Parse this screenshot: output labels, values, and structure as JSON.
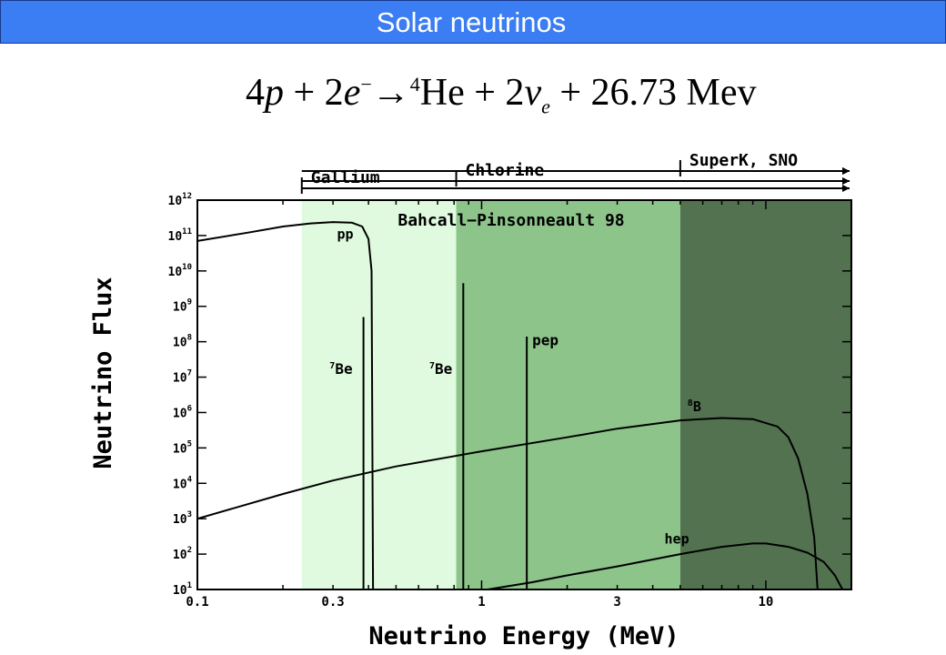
{
  "header": {
    "title": "Solar neutrinos"
  },
  "equation": {
    "lhs_coef": "4",
    "lhs_p": "p",
    "plus1": " + 2",
    "electron": "e",
    "electron_sup": "−",
    "arrow": "→",
    "he_sup": "4",
    "he": "He",
    "plus2": " + 2",
    "nu": "ν",
    "nu_sub": "e",
    "rhs_energy": " + 26.73 Mev"
  },
  "colors": {
    "gallium_band": "#dffadf",
    "chlorine_band": "#8dc48a",
    "superk_band": "#527250",
    "line": "#000000",
    "title_bar": "#3b7df2"
  },
  "chart_data": {
    "type": "line",
    "title": "Bahcall−Pinsonneault 98",
    "xlabel": "Neutrino Energy (MeV)",
    "ylabel": "Neutrino Flux",
    "xscale": "log",
    "yscale": "log",
    "xlim": [
      0.1,
      20
    ],
    "ylim": [
      10,
      1000000000000
    ],
    "x_ticks": [
      {
        "value": 0.1,
        "label": "0.1"
      },
      {
        "value": 0.3,
        "label": "0.3"
      },
      {
        "value": 1,
        "label": "1"
      },
      {
        "value": 3,
        "label": "3"
      },
      {
        "value": 10,
        "label": "10"
      }
    ],
    "y_ticks": [
      {
        "value": 10,
        "base": "10",
        "exp": "1"
      },
      {
        "value": 100,
        "base": "10",
        "exp": "2"
      },
      {
        "value": 1000,
        "base": "10",
        "exp": "3"
      },
      {
        "value": 10000,
        "base": "10",
        "exp": "4"
      },
      {
        "value": 100000,
        "base": "10",
        "exp": "5"
      },
      {
        "value": 1000000,
        "base": "10",
        "exp": "6"
      },
      {
        "value": 10000000,
        "base": "10",
        "exp": "7"
      },
      {
        "value": 100000000,
        "base": "10",
        "exp": "8"
      },
      {
        "value": 1000000000,
        "base": "10",
        "exp": "9"
      },
      {
        "value": 10000000000,
        "base": "10",
        "exp": "10"
      },
      {
        "value": 100000000000,
        "base": "10",
        "exp": "11"
      },
      {
        "value": 1000000000000,
        "base": "10",
        "exp": "12"
      }
    ],
    "detector_ranges": [
      {
        "name": "Gallium",
        "threshold_mev": 0.233,
        "level": 1,
        "color": "#dffadf"
      },
      {
        "name": "Chlorine",
        "threshold_mev": 0.814,
        "level": 2,
        "color": "#8dc48a"
      },
      {
        "name": "SuperK, SNO",
        "threshold_mev": 5,
        "level": 3,
        "color": "#527250"
      }
    ],
    "series": [
      {
        "name": "pp",
        "points": [
          [
            0.1,
            70000000000.0
          ],
          [
            0.15,
            120000000000.0
          ],
          [
            0.2,
            180000000000.0
          ],
          [
            0.25,
            220000000000.0
          ],
          [
            0.3,
            240000000000.0
          ],
          [
            0.35,
            230000000000.0
          ],
          [
            0.38,
            180000000000.0
          ],
          [
            0.4,
            80000000000.0
          ],
          [
            0.41,
            10000000000.0
          ],
          [
            0.415,
            10
          ]
        ]
      },
      {
        "name": "8B",
        "points": [
          [
            0.1,
            1000
          ],
          [
            0.2,
            5000
          ],
          [
            0.3,
            12000
          ],
          [
            0.5,
            30000
          ],
          [
            1,
            80000
          ],
          [
            2,
            200000
          ],
          [
            3,
            350000
          ],
          [
            5,
            600000
          ],
          [
            7,
            700000
          ],
          [
            9,
            650000
          ],
          [
            11,
            400000
          ],
          [
            12,
            200000
          ],
          [
            13,
            50000
          ],
          [
            14,
            5000
          ],
          [
            14.8,
            300
          ],
          [
            15.2,
            10
          ]
        ]
      },
      {
        "name": "hep",
        "points": [
          [
            1.05,
            10
          ],
          [
            1.5,
            16
          ],
          [
            2,
            25
          ],
          [
            3,
            45
          ],
          [
            5,
            100
          ],
          [
            7,
            160
          ],
          [
            9,
            200
          ],
          [
            10,
            200
          ],
          [
            12,
            160
          ],
          [
            14,
            110
          ],
          [
            16,
            60
          ],
          [
            17.5,
            25
          ],
          [
            18.6,
            10
          ]
        ]
      }
    ],
    "lines": [
      {
        "name": "7Be",
        "label_sup": "7",
        "label_text": "Be",
        "energy_mev": 0.384,
        "flux": 500000000.0
      },
      {
        "name": "7Be",
        "label_sup": "7",
        "label_text": "Be",
        "energy_mev": 0.862,
        "flux": 4500000000.0
      },
      {
        "name": "pep",
        "label_sup": "",
        "label_text": "pep",
        "energy_mev": 1.442,
        "flux": 140000000.0
      }
    ],
    "curve_labels": [
      {
        "series": "pp",
        "sup": "",
        "text": "pp",
        "x": 0.31,
        "y": 80000000000.0
      },
      {
        "series": "8B",
        "sup": "8",
        "text": "B",
        "x": 5.3,
        "y": 1100000.0
      },
      {
        "series": "hep",
        "sup": "",
        "text": "hep",
        "x": 4.4,
        "y": 200
      }
    ]
  }
}
